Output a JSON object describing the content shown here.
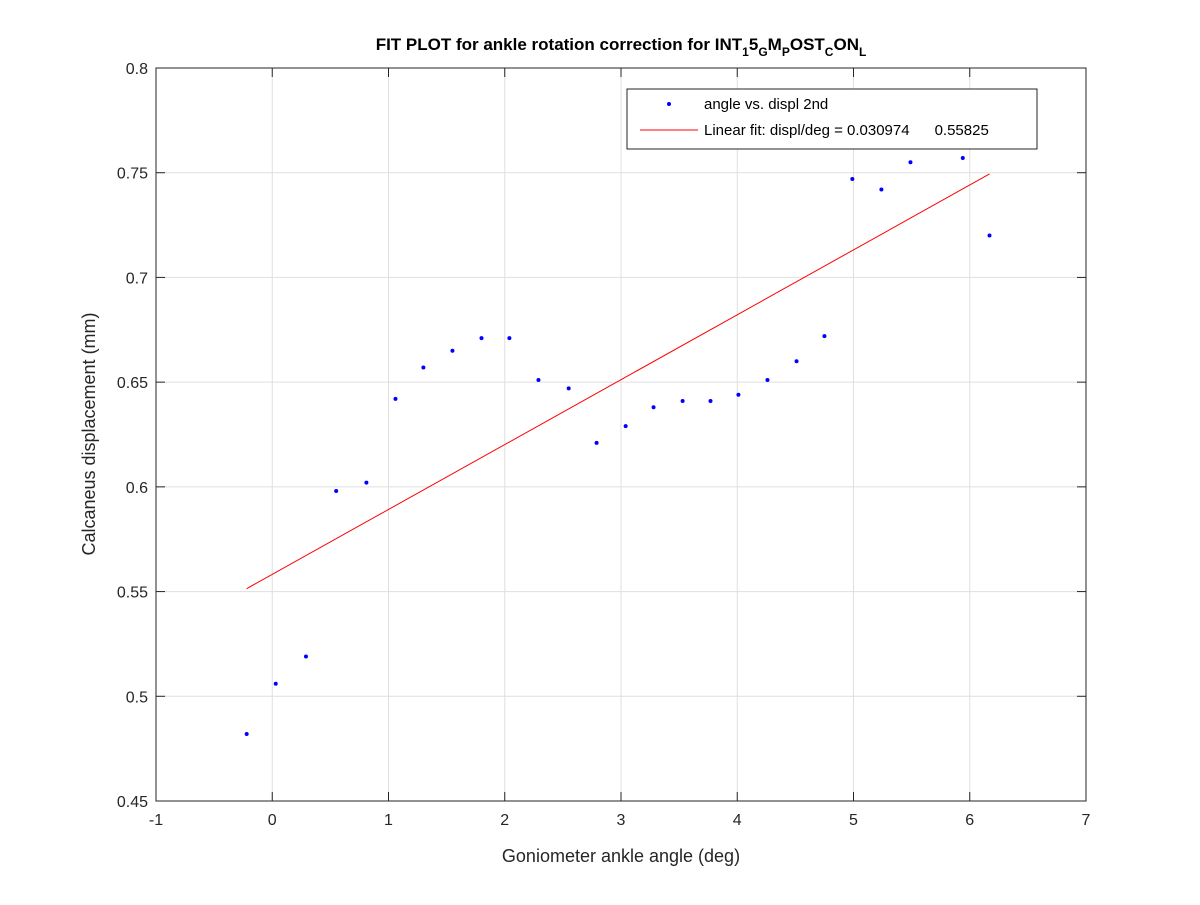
{
  "chart_data": {
    "type": "scatter",
    "title": {
      "parts": [
        {
          "text": "FIT PLOT for ankle rotation correction for INT",
          "sub": false
        },
        {
          "text": "1",
          "sub": true
        },
        {
          "text": "5",
          "sub": false
        },
        {
          "text": "G",
          "sub": true
        },
        {
          "text": "M",
          "sub": false
        },
        {
          "text": "P",
          "sub": true
        },
        {
          "text": "OST",
          "sub": false
        },
        {
          "text": "C",
          "sub": true
        },
        {
          "text": "ON",
          "sub": false
        },
        {
          "text": "L",
          "sub": true
        }
      ]
    },
    "xlabel": "Goniometer ankle angle (deg)",
    "ylabel": "Calcaneus displacement (mm)",
    "xlim": [
      -1,
      7
    ],
    "ylim": [
      0.45,
      0.8
    ],
    "xticks": [
      "-1",
      "0",
      "1",
      "2",
      "3",
      "4",
      "5",
      "6",
      "7"
    ],
    "yticks": [
      "0.45",
      "0.5",
      "0.55",
      "0.6",
      "0.65",
      "0.7",
      "0.75",
      "0.8"
    ],
    "grid": true,
    "legend_position": "top-right",
    "series": [
      {
        "name": "angle vs. displ 2nd",
        "kind": "points",
        "color": "#0000ff",
        "x": [
          -0.22,
          0.03,
          0.29,
          0.55,
          0.81,
          1.06,
          1.3,
          1.55,
          1.8,
          2.04,
          2.29,
          2.55,
          2.79,
          3.04,
          3.28,
          3.53,
          3.77,
          4.01,
          4.26,
          4.51,
          4.75,
          4.99,
          5.24,
          5.49,
          5.94,
          6.17
        ],
        "y": [
          0.482,
          0.506,
          0.519,
          0.598,
          0.602,
          0.642,
          0.657,
          0.665,
          0.671,
          0.671,
          0.651,
          0.647,
          0.621,
          0.629,
          0.638,
          0.641,
          0.641,
          0.644,
          0.651,
          0.66,
          0.672,
          0.747,
          0.742,
          0.755,
          0.757,
          0.72
        ]
      },
      {
        "name": "Linear fit: displ/deg = 0.030974      0.55825",
        "kind": "line",
        "color": "#ff0000",
        "x": [
          -0.22,
          6.17
        ],
        "y": [
          0.5514,
          0.7494
        ]
      }
    ]
  }
}
